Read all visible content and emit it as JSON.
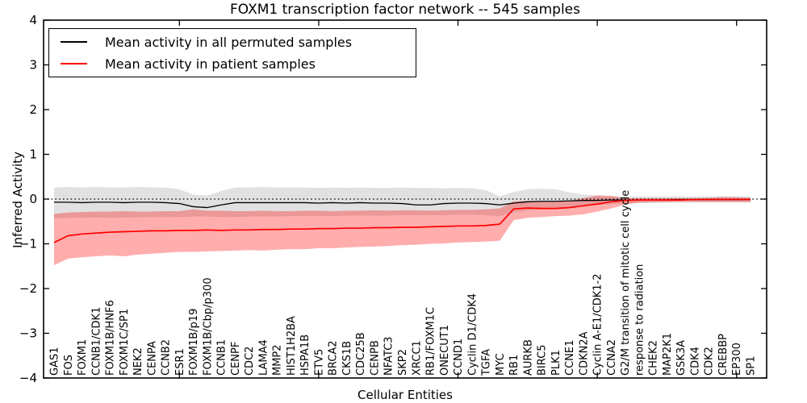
{
  "title": "FOXM1 transcription factor network -- 545 samples",
  "axes": {
    "ylabel": "Inferred Activity",
    "xlabel": "Cellular Entities"
  },
  "legend": {
    "items": [
      {
        "label": "Mean activity in all permuted samples",
        "color": "#000000"
      },
      {
        "label": "Mean activity in patient samples",
        "color": "#ff0000"
      }
    ]
  },
  "colors": {
    "permuted_line": "#000000",
    "permuted_band": "#e1e1e1",
    "patient_line": "#ff0000",
    "patient_band": "rgba(255,0,0,0.32)",
    "zero_line": "#000000",
    "spine": "#000000"
  },
  "chart_data": {
    "type": "line",
    "title": "FOXM1 transcription factor network -- 545 samples",
    "xlabel": "Cellular Entities",
    "ylabel": "Inferred Activity",
    "ylim": [
      -4,
      4
    ],
    "yticks": [
      -4,
      -3,
      -2,
      -1,
      0,
      1,
      2,
      3,
      4
    ],
    "xticks_data_units": [
      10,
      20,
      30,
      40,
      50
    ],
    "grid": false,
    "legend_position": "upper left",
    "zero_line": {
      "value": 0,
      "style": "dotted"
    },
    "categories": [
      "GAS1",
      "FOS",
      "FOXM1",
      "CCNB1/CDK1",
      "FOXM1B/HNF6",
      "FOXM1C/SP1",
      "NEK2",
      "CENPA",
      "CCNB2",
      "ESR1",
      "FOXM1B/p19",
      "FOXM1B/Cbp/p300",
      "CCNB1",
      "CENPF",
      "CDC2",
      "LAMA4",
      "MMP2",
      "HIST1H2BA",
      "HSPA1B",
      "ETV5",
      "BRCA2",
      "CKS1B",
      "CDC25B",
      "CENPB",
      "NFATC3",
      "SKP2",
      "XRCC1",
      "RB1/FOXM1C",
      "ONECUT1",
      "CCND1",
      "Cyclin D1/CDK4",
      "TGFA",
      "MYC",
      "RB1",
      "AURKB",
      "BIRC5",
      "PLK1",
      "CCNE1",
      "CDKN2A",
      "Cyclin A-E1/CDK1-2",
      "CCNA2",
      "G2/M transition of mitotic cell cycle",
      "response to radiation",
      "CHEK2",
      "MAP2K1",
      "GSK3A",
      "CDK4",
      "CDK2",
      "CREBBP",
      "EP300",
      "SP1"
    ],
    "series": [
      {
        "name": "Mean activity in all permuted samples",
        "kind": "line",
        "values": [
          -0.07,
          -0.07,
          -0.08,
          -0.07,
          -0.07,
          -0.08,
          -0.07,
          -0.07,
          -0.08,
          -0.1,
          -0.17,
          -0.19,
          -0.13,
          -0.08,
          -0.08,
          -0.08,
          -0.08,
          -0.08,
          -0.08,
          -0.09,
          -0.08,
          -0.09,
          -0.08,
          -0.09,
          -0.09,
          -0.1,
          -0.13,
          -0.13,
          -0.1,
          -0.09,
          -0.09,
          -0.1,
          -0.13,
          -0.09,
          -0.06,
          -0.05,
          -0.05,
          -0.04,
          -0.03,
          -0.03,
          -0.02,
          -0.02,
          -0.02,
          -0.02,
          -0.02,
          -0.01,
          -0.01,
          -0.01,
          -0.01,
          -0.01,
          -0.01
        ]
      },
      {
        "name": "Permuted samples band",
        "kind": "band",
        "upper": [
          0.26,
          0.27,
          0.26,
          0.27,
          0.26,
          0.26,
          0.27,
          0.26,
          0.26,
          0.22,
          0.1,
          0.08,
          0.18,
          0.26,
          0.26,
          0.27,
          0.26,
          0.26,
          0.26,
          0.25,
          0.26,
          0.25,
          0.26,
          0.25,
          0.25,
          0.26,
          0.25,
          0.25,
          0.24,
          0.25,
          0.24,
          0.2,
          0.06,
          0.16,
          0.22,
          0.23,
          0.22,
          0.15,
          0.1,
          0.08,
          0.07,
          0.06,
          0.06,
          0.06,
          0.06,
          0.06,
          0.06,
          0.06,
          0.06,
          0.06,
          0.06
        ],
        "lower": [
          -0.43,
          -0.42,
          -0.42,
          -0.41,
          -0.42,
          -0.41,
          -0.41,
          -0.4,
          -0.4,
          -0.4,
          -0.39,
          -0.39,
          -0.4,
          -0.4,
          -0.39,
          -0.39,
          -0.39,
          -0.38,
          -0.38,
          -0.38,
          -0.38,
          -0.37,
          -0.37,
          -0.37,
          -0.37,
          -0.36,
          -0.36,
          -0.36,
          -0.36,
          -0.35,
          -0.35,
          -0.36,
          -0.38,
          -0.3,
          -0.25,
          -0.22,
          -0.22,
          -0.18,
          -0.15,
          -0.13,
          -0.11,
          -0.1,
          -0.09,
          -0.09,
          -0.08,
          -0.08,
          -0.08,
          -0.08,
          -0.08,
          -0.08,
          -0.08
        ]
      },
      {
        "name": "Mean activity in patient samples",
        "kind": "line",
        "values": [
          -0.97,
          -0.82,
          -0.78,
          -0.76,
          -0.74,
          -0.73,
          -0.72,
          -0.71,
          -0.71,
          -0.7,
          -0.7,
          -0.69,
          -0.7,
          -0.69,
          -0.69,
          -0.68,
          -0.68,
          -0.67,
          -0.67,
          -0.66,
          -0.66,
          -0.65,
          -0.65,
          -0.64,
          -0.64,
          -0.63,
          -0.63,
          -0.62,
          -0.61,
          -0.6,
          -0.6,
          -0.59,
          -0.56,
          -0.22,
          -0.2,
          -0.21,
          -0.21,
          -0.19,
          -0.15,
          -0.11,
          -0.06,
          -0.03,
          -0.02,
          -0.02,
          -0.02,
          -0.02,
          -0.01,
          -0.01,
          -0.01,
          -0.01,
          -0.01
        ]
      },
      {
        "name": "Patient samples band",
        "kind": "band",
        "upper": [
          -0.33,
          -0.3,
          -0.29,
          -0.28,
          -0.28,
          -0.27,
          -0.28,
          -0.28,
          -0.27,
          -0.27,
          -0.23,
          -0.26,
          -0.26,
          -0.27,
          -0.27,
          -0.26,
          -0.27,
          -0.27,
          -0.26,
          -0.26,
          -0.27,
          -0.26,
          -0.26,
          -0.25,
          -0.26,
          -0.25,
          -0.25,
          -0.26,
          -0.25,
          -0.24,
          -0.24,
          -0.23,
          -0.21,
          -0.05,
          -0.04,
          -0.05,
          -0.06,
          -0.04,
          0.02,
          0.08,
          0.07,
          0.02,
          0.02,
          0.02,
          0.02,
          0.02,
          0.02,
          0.03,
          0.05,
          0.04,
          0.03
        ],
        "lower": [
          -1.48,
          -1.33,
          -1.3,
          -1.28,
          -1.26,
          -1.28,
          -1.24,
          -1.22,
          -1.2,
          -1.18,
          -1.18,
          -1.17,
          -1.16,
          -1.15,
          -1.14,
          -1.15,
          -1.13,
          -1.12,
          -1.12,
          -1.1,
          -1.1,
          -1.08,
          -1.07,
          -1.06,
          -1.05,
          -1.03,
          -1.02,
          -1.0,
          -0.99,
          -0.97,
          -0.96,
          -0.95,
          -0.93,
          -0.47,
          -0.42,
          -0.4,
          -0.38,
          -0.37,
          -0.34,
          -0.28,
          -0.21,
          -0.12,
          -0.08,
          -0.07,
          -0.07,
          -0.06,
          -0.06,
          -0.06,
          -0.06,
          -0.06,
          -0.06
        ]
      }
    ]
  }
}
